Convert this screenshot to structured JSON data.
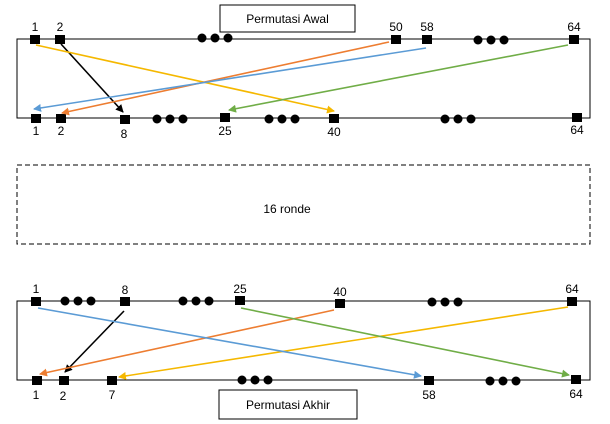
{
  "top_title": "Permutasi Awal",
  "bottom_title": "Permutasi Akhir",
  "middle_label": "16 ronde",
  "colors": {
    "black": "#000000",
    "yellow": "#f5b800",
    "orange": "#ed7d31",
    "blue": "#5b9bd5",
    "green": "#70ad47"
  },
  "top_box": {
    "upper_labels": [
      "1",
      "2",
      "50",
      "58",
      "64"
    ],
    "lower_labels": [
      "1",
      "2",
      "8",
      "25",
      "40",
      "64"
    ]
  },
  "bottom_box": {
    "upper_labels": [
      "1",
      "8",
      "25",
      "40",
      "64"
    ],
    "lower_labels": [
      "1",
      "2",
      "7",
      "58",
      "64"
    ]
  },
  "top_arrows": [
    {
      "from": "2",
      "to": "8",
      "color": "black"
    },
    {
      "from": "1",
      "to": "40",
      "color": "yellow"
    },
    {
      "from": "50",
      "to": "2",
      "color": "orange"
    },
    {
      "from": "58",
      "to": "1",
      "color": "blue"
    },
    {
      "from": "64",
      "to": "25",
      "color": "green"
    }
  ],
  "bottom_arrows": [
    {
      "from": "8",
      "to": "2",
      "color": "black"
    },
    {
      "from": "64",
      "to": "7",
      "color": "yellow"
    },
    {
      "from": "40",
      "to": "1",
      "color": "orange"
    },
    {
      "from": "1",
      "to": "58",
      "color": "blue"
    },
    {
      "from": "25",
      "to": "64",
      "color": "green"
    }
  ]
}
